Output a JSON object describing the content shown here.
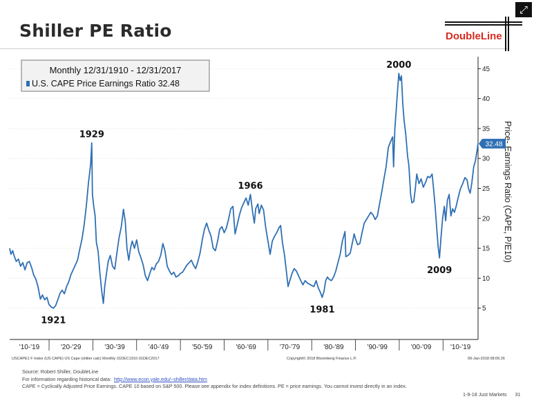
{
  "slide": {
    "title": "Shiller PE Ratio",
    "logo_text": "DoubleLine",
    "expand_icon": "expand-arrows-icon"
  },
  "chart_data": {
    "type": "line",
    "legend": {
      "line1": "Monthly 12/31/1910 - 12/31/2017",
      "line2": "U.S. CAPE Price Earnings Ratio 32.48",
      "placement": "top-left"
    },
    "ylabel": "Price- Earnings Ratio (CAPE, P/E10)",
    "y_axis_side": "right",
    "ylim": [
      0,
      47
    ],
    "yticks": [
      "5",
      "10",
      "15",
      "20",
      "25",
      "30",
      "35",
      "40",
      "45"
    ],
    "xlim": [
      1911,
      2018
    ],
    "x_category_labels": [
      "'10-'19",
      "'20-'29",
      "'30-'39",
      "'40-'49",
      "'50-'59",
      "'60-'69",
      "'70-'79",
      "'80-'89",
      "'90-'99",
      "'00-'09",
      "'10-'19"
    ],
    "last_value_label": "32.48",
    "accent_color": "#2e6fb4",
    "series": [
      {
        "values": [
          [
            1911.0,
            15.0
          ],
          [
            1911.3,
            14.0
          ],
          [
            1911.7,
            14.6
          ],
          [
            1912.0,
            13.8
          ],
          [
            1912.5,
            12.8
          ],
          [
            1913.0,
            13.2
          ],
          [
            1913.5,
            12.0
          ],
          [
            1914.0,
            12.6
          ],
          [
            1914.5,
            11.4
          ],
          [
            1915.0,
            12.6
          ],
          [
            1915.5,
            12.8
          ],
          [
            1916.0,
            11.8
          ],
          [
            1916.5,
            10.5
          ],
          [
            1917.0,
            9.8
          ],
          [
            1917.5,
            8.5
          ],
          [
            1918.0,
            6.5
          ],
          [
            1918.5,
            7.2
          ],
          [
            1919.0,
            6.4
          ],
          [
            1919.5,
            6.8
          ],
          [
            1920.0,
            5.6
          ],
          [
            1920.5,
            5.2
          ],
          [
            1921.0,
            5.0
          ],
          [
            1921.5,
            5.4
          ],
          [
            1922.0,
            6.4
          ],
          [
            1922.5,
            7.5
          ],
          [
            1923.0,
            8.0
          ],
          [
            1923.5,
            7.4
          ],
          [
            1924.0,
            8.6
          ],
          [
            1924.5,
            9.4
          ],
          [
            1925.0,
            10.6
          ],
          [
            1925.5,
            11.4
          ],
          [
            1926.0,
            12.2
          ],
          [
            1926.5,
            13.0
          ],
          [
            1927.0,
            14.8
          ],
          [
            1927.5,
            16.5
          ],
          [
            1928.0,
            18.8
          ],
          [
            1928.5,
            22.0
          ],
          [
            1929.0,
            26.0
          ],
          [
            1929.5,
            29.0
          ],
          [
            1929.75,
            32.6
          ],
          [
            1929.9,
            24.0
          ],
          [
            1930.2,
            22.0
          ],
          [
            1930.5,
            20.5
          ],
          [
            1930.8,
            16.0
          ],
          [
            1931.2,
            14.5
          ],
          [
            1931.6,
            11.0
          ],
          [
            1932.0,
            8.0
          ],
          [
            1932.4,
            5.8
          ],
          [
            1932.7,
            8.5
          ],
          [
            1933.0,
            10.2
          ],
          [
            1933.5,
            12.8
          ],
          [
            1934.0,
            13.8
          ],
          [
            1934.5,
            12.0
          ],
          [
            1935.0,
            11.5
          ],
          [
            1935.5,
            14.2
          ],
          [
            1936.0,
            16.8
          ],
          [
            1936.5,
            18.6
          ],
          [
            1937.0,
            21.5
          ],
          [
            1937.4,
            19.5
          ],
          [
            1937.8,
            15.0
          ],
          [
            1938.2,
            13.0
          ],
          [
            1938.6,
            15.0
          ],
          [
            1939.0,
            16.2
          ],
          [
            1939.5,
            15.0
          ],
          [
            1940.0,
            16.4
          ],
          [
            1940.5,
            14.4
          ],
          [
            1941.0,
            13.4
          ],
          [
            1941.5,
            12.2
          ],
          [
            1942.0,
            10.4
          ],
          [
            1942.5,
            9.6
          ],
          [
            1943.0,
            10.8
          ],
          [
            1943.5,
            11.8
          ],
          [
            1944.0,
            11.4
          ],
          [
            1944.5,
            12.4
          ],
          [
            1945.0,
            12.8
          ],
          [
            1945.5,
            13.8
          ],
          [
            1946.0,
            15.8
          ],
          [
            1946.5,
            14.5
          ],
          [
            1947.0,
            12.0
          ],
          [
            1947.5,
            11.2
          ],
          [
            1948.0,
            10.6
          ],
          [
            1948.5,
            11.0
          ],
          [
            1949.0,
            10.2
          ],
          [
            1949.5,
            10.4
          ],
          [
            1950.0,
            10.8
          ],
          [
            1950.5,
            11.0
          ],
          [
            1951.0,
            11.6
          ],
          [
            1951.5,
            12.2
          ],
          [
            1952.0,
            12.6
          ],
          [
            1952.5,
            13.0
          ],
          [
            1953.0,
            12.2
          ],
          [
            1953.5,
            11.6
          ],
          [
            1954.0,
            12.8
          ],
          [
            1954.5,
            14.2
          ],
          [
            1955.0,
            16.4
          ],
          [
            1955.5,
            18.2
          ],
          [
            1956.0,
            19.2
          ],
          [
            1956.5,
            18.0
          ],
          [
            1957.0,
            17.0
          ],
          [
            1957.5,
            15.0
          ],
          [
            1958.0,
            14.6
          ],
          [
            1958.5,
            16.2
          ],
          [
            1959.0,
            18.2
          ],
          [
            1959.5,
            18.6
          ],
          [
            1960.0,
            17.6
          ],
          [
            1960.5,
            18.4
          ],
          [
            1961.0,
            19.8
          ],
          [
            1961.5,
            21.6
          ],
          [
            1962.0,
            22.0
          ],
          [
            1962.5,
            17.4
          ],
          [
            1963.0,
            19.0
          ],
          [
            1963.5,
            20.6
          ],
          [
            1964.0,
            21.8
          ],
          [
            1964.5,
            22.6
          ],
          [
            1965.0,
            23.4
          ],
          [
            1965.5,
            22.2
          ],
          [
            1966.0,
            24.0
          ],
          [
            1966.5,
            21.0
          ],
          [
            1966.9,
            19.2
          ],
          [
            1967.2,
            21.6
          ],
          [
            1967.7,
            22.4
          ],
          [
            1968.0,
            20.8
          ],
          [
            1968.5,
            22.2
          ],
          [
            1969.0,
            21.4
          ],
          [
            1969.5,
            18.4
          ],
          [
            1970.0,
            16.2
          ],
          [
            1970.5,
            14.0
          ],
          [
            1971.0,
            16.2
          ],
          [
            1971.5,
            17.0
          ],
          [
            1972.0,
            17.6
          ],
          [
            1972.5,
            18.4
          ],
          [
            1972.9,
            18.8
          ],
          [
            1973.3,
            16.0
          ],
          [
            1973.8,
            13.8
          ],
          [
            1974.2,
            11.2
          ],
          [
            1974.6,
            8.6
          ],
          [
            1975.0,
            9.6
          ],
          [
            1975.5,
            10.8
          ],
          [
            1976.0,
            11.6
          ],
          [
            1976.5,
            11.2
          ],
          [
            1977.0,
            10.4
          ],
          [
            1977.5,
            9.6
          ],
          [
            1978.0,
            8.9
          ],
          [
            1978.5,
            9.6
          ],
          [
            1979.0,
            9.2
          ],
          [
            1979.5,
            9.0
          ],
          [
            1980.0,
            8.8
          ],
          [
            1980.5,
            8.6
          ],
          [
            1981.0,
            9.6
          ],
          [
            1981.5,
            8.4
          ],
          [
            1982.0,
            7.6
          ],
          [
            1982.4,
            6.8
          ],
          [
            1982.8,
            7.8
          ],
          [
            1983.2,
            9.6
          ],
          [
            1983.6,
            10.2
          ],
          [
            1984.0,
            9.8
          ],
          [
            1984.5,
            9.6
          ],
          [
            1985.0,
            10.2
          ],
          [
            1985.5,
            11.2
          ],
          [
            1986.0,
            12.6
          ],
          [
            1986.5,
            14.0
          ],
          [
            1987.0,
            16.2
          ],
          [
            1987.6,
            17.8
          ],
          [
            1987.8,
            13.6
          ],
          [
            1988.3,
            13.8
          ],
          [
            1988.8,
            14.2
          ],
          [
            1989.2,
            15.6
          ],
          [
            1989.7,
            17.4
          ],
          [
            1990.0,
            16.6
          ],
          [
            1990.5,
            15.6
          ],
          [
            1991.0,
            15.8
          ],
          [
            1991.5,
            17.6
          ],
          [
            1992.0,
            19.2
          ],
          [
            1992.5,
            19.8
          ],
          [
            1993.0,
            20.4
          ],
          [
            1993.5,
            21.0
          ],
          [
            1994.0,
            20.6
          ],
          [
            1994.5,
            19.8
          ],
          [
            1995.0,
            20.4
          ],
          [
            1995.5,
            22.4
          ],
          [
            1996.0,
            24.4
          ],
          [
            1996.5,
            26.6
          ],
          [
            1997.0,
            28.6
          ],
          [
            1997.5,
            31.8
          ],
          [
            1998.0,
            32.8
          ],
          [
            1998.5,
            33.6
          ],
          [
            1998.7,
            28.6
          ],
          [
            1999.0,
            35.0
          ],
          [
            1999.3,
            38.0
          ],
          [
            1999.6,
            41.2
          ],
          [
            1999.9,
            44.2
          ],
          [
            2000.2,
            43.0
          ],
          [
            2000.5,
            43.8
          ],
          [
            2000.8,
            39.2
          ],
          [
            2001.1,
            36.4
          ],
          [
            2001.5,
            34.0
          ],
          [
            2001.9,
            30.4
          ],
          [
            2002.2,
            28.8
          ],
          [
            2002.6,
            24.0
          ],
          [
            2002.9,
            22.6
          ],
          [
            2003.3,
            22.8
          ],
          [
            2003.7,
            25.2
          ],
          [
            2004.0,
            27.4
          ],
          [
            2004.5,
            25.8
          ],
          [
            2005.0,
            26.6
          ],
          [
            2005.5,
            25.2
          ],
          [
            2006.0,
            26.0
          ],
          [
            2006.5,
            27.0
          ],
          [
            2007.0,
            26.8
          ],
          [
            2007.5,
            27.4
          ],
          [
            2007.8,
            25.2
          ],
          [
            2008.2,
            22.0
          ],
          [
            2008.6,
            18.0
          ],
          [
            2008.9,
            15.2
          ],
          [
            2009.2,
            13.4
          ],
          [
            2009.5,
            16.4
          ],
          [
            2009.9,
            20.0
          ],
          [
            2010.3,
            22.0
          ],
          [
            2010.6,
            19.6
          ],
          [
            2011.0,
            23.0
          ],
          [
            2011.4,
            24.0
          ],
          [
            2011.8,
            20.4
          ],
          [
            2012.2,
            21.6
          ],
          [
            2012.6,
            21.0
          ],
          [
            2013.0,
            22.0
          ],
          [
            2013.5,
            23.6
          ],
          [
            2014.0,
            25.0
          ],
          [
            2014.5,
            25.8
          ],
          [
            2015.0,
            26.8
          ],
          [
            2015.5,
            26.4
          ],
          [
            2015.8,
            25.0
          ],
          [
            2016.2,
            24.2
          ],
          [
            2016.6,
            26.0
          ],
          [
            2017.0,
            28.6
          ],
          [
            2017.4,
            29.6
          ],
          [
            2017.8,
            31.4
          ],
          [
            2017.99,
            32.48
          ]
        ]
      }
    ],
    "annotations": [
      {
        "text": "1929",
        "x": 1929.75,
        "y": 32.6,
        "pos": "above"
      },
      {
        "text": "1921",
        "x": 1921.0,
        "y": 5.0,
        "pos": "below"
      },
      {
        "text": "1966",
        "x": 1966.0,
        "y": 24.0,
        "pos": "above"
      },
      {
        "text": "1981",
        "x": 1982.4,
        "y": 6.8,
        "pos": "below"
      },
      {
        "text": "2000",
        "x": 1999.9,
        "y": 44.2,
        "pos": "above"
      },
      {
        "text": "2009",
        "x": 2009.2,
        "y": 13.4,
        "pos": "below"
      }
    ]
  },
  "chart_footer": {
    "left": "USCAPE1 F Index (US CAPE) US Cape (shiller calc) Monthly 31DEC1910-31DEC2017",
    "center": "Copyright© 2018 Bloomberg Finance L.P.",
    "right": "09-Jan-2018 08:06:26"
  },
  "footer": {
    "source": "Source: Robert Shiller, DoubleLine",
    "info_prefix": "For information regarding historical data:",
    "info_link": "http://www.econ.yale.edu/~shiller/data.htm",
    "definitions": "CAPE = Cyclically Adjusted Price Earnings. CAPE 10 based on S&P 500. Please see appendix for index definitions. PE = price earnings. You cannot invest directly in an index.",
    "page_ref": "1-9-18 Just Markets",
    "page_number": "31"
  }
}
